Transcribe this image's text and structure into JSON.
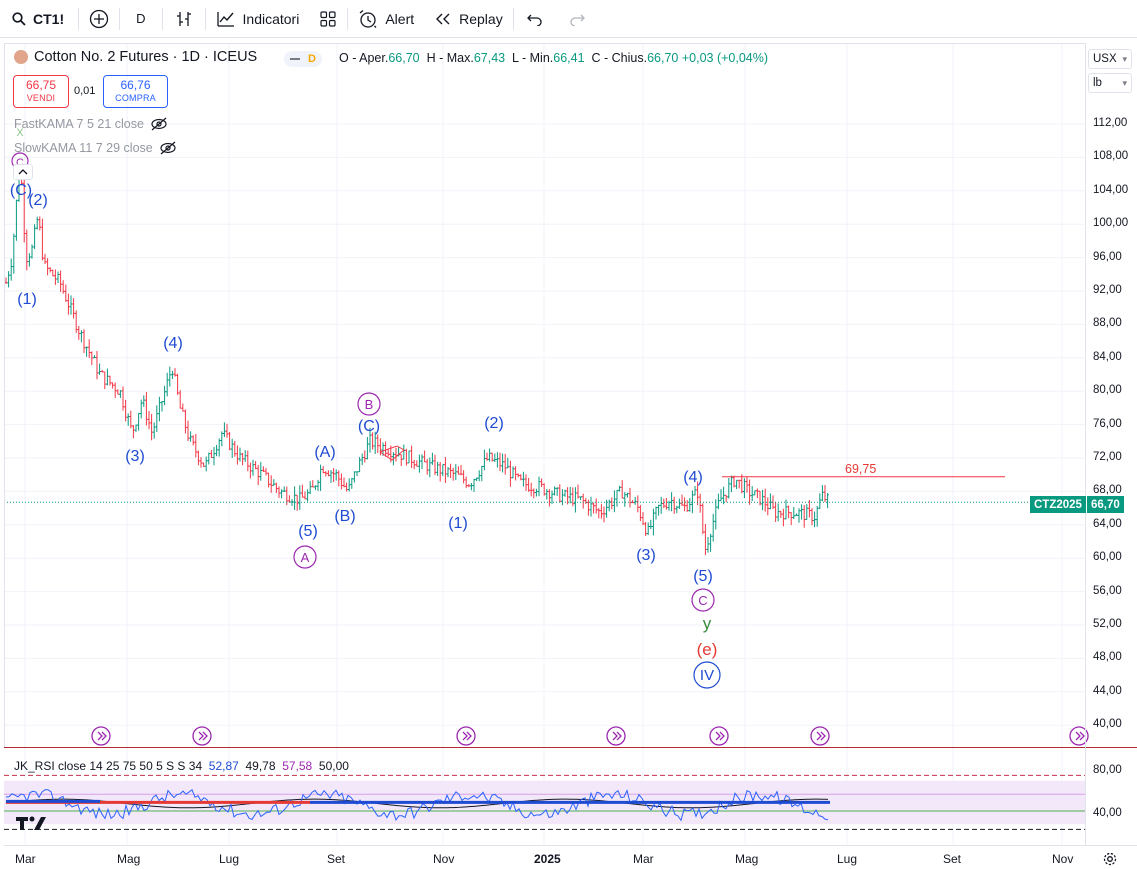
{
  "toolbar": {
    "symbol": "CT1!",
    "interval": "D",
    "indicators_label": "Indicatori",
    "alert_label": "Alert",
    "replay_label": "Replay"
  },
  "legend": {
    "title": "Cotton No. 2 Futures · 1D · ICEUS",
    "status_badge": "D",
    "o_label": "O - Aper.",
    "o": "66,70",
    "h_label": "H - Max.",
    "h": "67,43",
    "l_label": "L - Min.",
    "l": "66,41",
    "c_label": "C - Chius.",
    "c": "66,70",
    "change": "+0,03 (+0,04%)"
  },
  "trade": {
    "sell_price": "66,75",
    "sell_label": "VENDI",
    "spread": "0,01",
    "buy_price": "66,76",
    "buy_label": "COMPRA"
  },
  "indicators": {
    "fast": "FastKAMA 7 5 21 close",
    "slow": "SlowKAMA 11 7 29 close",
    "rsi_name": "JK_RSI close 14 25 75 50 5 S S 34",
    "rsi_v1": "52,87",
    "rsi_v2": "49,78",
    "rsi_v3": "57,58",
    "rsi_v4": "50,00",
    "hidden_icon": "eye-off-icon"
  },
  "price_scale": {
    "currency": "USX",
    "unit": "lb",
    "labels": [
      "112,00",
      "108,00",
      "104,00",
      "100,00",
      "96,00",
      "92,00",
      "88,00",
      "84,00",
      "80,00",
      "76,00",
      "72,00",
      "68,00",
      "64,00",
      "60,00",
      "56,00",
      "52,00",
      "48,00",
      "44,00",
      "40,00"
    ],
    "last_price": "66,70",
    "contract_tag": "CTZ2025",
    "resistance_label": "69,75"
  },
  "rsi_scale": {
    "labels": [
      "80,00",
      "40,00"
    ]
  },
  "time_axis": [
    "Mar",
    "Mag",
    "Lug",
    "Set",
    "Nov",
    "2025",
    "Mar",
    "Mag",
    "Lug",
    "Set",
    "Nov"
  ],
  "wave_labels": {
    "top_c": "C",
    "top_cp": "(C)",
    "w2": "(2)",
    "w1": "(1)",
    "w4": "(4)",
    "w3": "(3)",
    "w5": "(5)",
    "A_circ": "A",
    "A_par": "(A)",
    "B_par": "(B)",
    "B_circ": "B",
    "C_par": "(C)",
    "m1": "(1)",
    "m2": "(2)",
    "n3": "(3)",
    "n4": "(4)",
    "n5": "(5)",
    "C_circ2": "C",
    "y": "y",
    "e": "(e)",
    "IV": "IV",
    "x": "x"
  },
  "colors": {
    "up": "#089981",
    "down": "#f23645",
    "wave_blue": "#1e4bd2",
    "wave_purple": "#9c27b0",
    "wave_red": "#e53935",
    "wave_green": "#388e3c",
    "rsi_fill": "#f3e8fa"
  }
}
